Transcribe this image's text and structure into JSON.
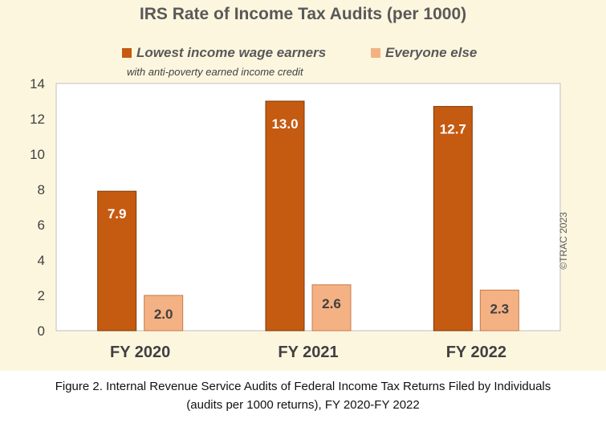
{
  "chart_data": {
    "type": "bar",
    "title": "IRS Rate of Income Tax Audits (per 1000)",
    "categories": [
      "FY 2020",
      "FY 2021",
      "FY 2022"
    ],
    "series": [
      {
        "name": "Lowest income wage earners",
        "values": [
          7.9,
          13.0,
          12.7
        ],
        "labels": [
          "7.9",
          "13.0",
          "12.7"
        ],
        "color": "#c55a11"
      },
      {
        "name": "Everyone else",
        "values": [
          2.0,
          2.6,
          2.3
        ],
        "labels": [
          "2.0",
          "2.6",
          "2.3"
        ],
        "color": "#f4b183"
      }
    ],
    "legend_note": "with anti-poverty earned income credit",
    "ylim": [
      0,
      14
    ],
    "yticks": [
      0,
      2,
      4,
      6,
      8,
      10,
      12,
      14
    ],
    "grid": false,
    "legend_position": "top"
  },
  "watermark": "©TRAC 2023",
  "caption": {
    "line1": "Figure 2. Internal Revenue Service Audits of Federal Income Tax Returns Filed by Individuals",
    "line2": "(audits per 1000 returns), FY 2020-FY 2022"
  },
  "colors": {
    "background": "#fdf6df",
    "plot_background": "#ffffff",
    "bar_border": "#7f3a08"
  }
}
